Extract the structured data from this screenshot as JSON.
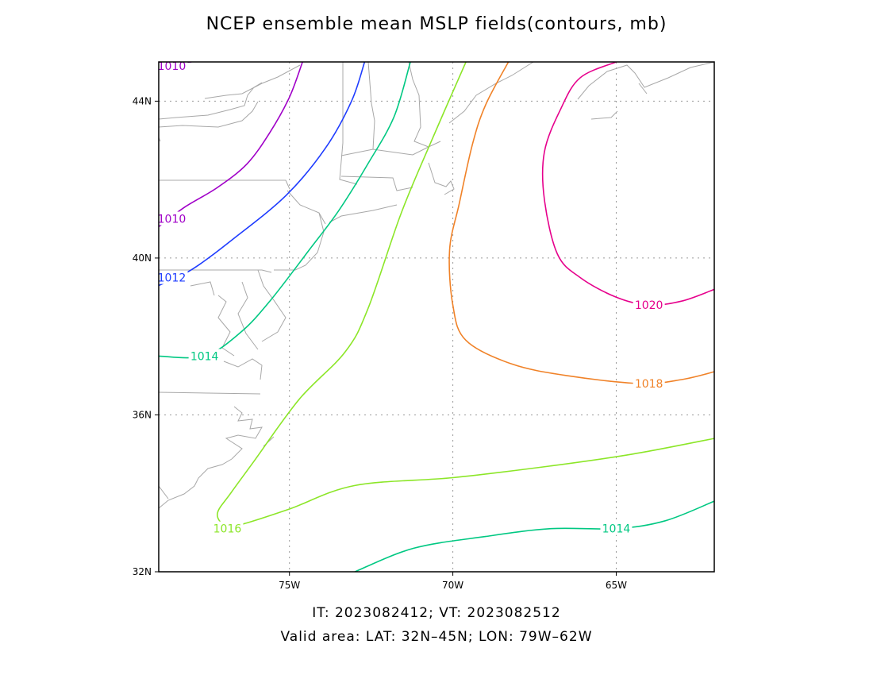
{
  "title": "NCEP ensemble mean MSLP fields(contours, mb)",
  "footer": {
    "times": "IT: 2023082412; VT: 2023082512",
    "area": "Valid area: LAT: 32N–45N; LON: 79W–62W"
  },
  "map": {
    "lat_range": [
      32,
      45
    ],
    "lon_range": [
      -79,
      -62
    ],
    "lat_ticks": [
      {
        "value": 32,
        "label": "32N"
      },
      {
        "value": 36,
        "label": "36N"
      },
      {
        "value": 40,
        "label": "40N"
      },
      {
        "value": 44,
        "label": "44N"
      }
    ],
    "lon_ticks": [
      {
        "value": -75,
        "label": "75W"
      },
      {
        "value": -70,
        "label": "70W"
      },
      {
        "value": -65,
        "label": "65W"
      }
    ],
    "grid": "dotted",
    "contours": [
      {
        "level": 1010,
        "color": "#a000c8",
        "points": [
          [
            -79,
            44.8
          ],
          [
            -78.6,
            44.95
          ],
          [
            -78.0,
            45.0
          ]
        ],
        "label_text": "1010",
        "label_at": [
          -78.6,
          44.9
        ]
      },
      {
        "level": 1010,
        "color": "#a000c8",
        "points": [
          [
            -79,
            40.8
          ],
          [
            -78.2,
            41.3
          ],
          [
            -77.2,
            41.8
          ],
          [
            -76.3,
            42.4
          ],
          [
            -75.6,
            43.2
          ],
          [
            -75.0,
            44.1
          ],
          [
            -74.6,
            45.0
          ]
        ],
        "label_text": "1010",
        "label_at": [
          -78.6,
          41.0
        ]
      },
      {
        "level": 1012,
        "color": "#1e3cff",
        "points": [
          [
            -79,
            39.3
          ],
          [
            -78.0,
            39.7
          ],
          [
            -76.7,
            40.5
          ],
          [
            -75.1,
            41.6
          ],
          [
            -73.9,
            42.8
          ],
          [
            -73.1,
            44.0
          ],
          [
            -72.7,
            45.0
          ]
        ],
        "label_text": "1012",
        "label_at": [
          -78.6,
          39.5
        ]
      },
      {
        "level": 1014,
        "color": "#00c882",
        "points": [
          [
            -79,
            37.5
          ],
          [
            -77.6,
            37.5
          ],
          [
            -76.5,
            38.1
          ],
          [
            -75.6,
            38.9
          ],
          [
            -74.4,
            40.2
          ],
          [
            -73.5,
            41.2
          ],
          [
            -72.6,
            42.4
          ],
          [
            -71.8,
            43.6
          ],
          [
            -71.3,
            45.0
          ]
        ],
        "label_text": "1014",
        "label_at": [
          -77.6,
          37.5
        ]
      },
      {
        "level": 1014,
        "color": "#00c882",
        "points": [
          [
            -73.0,
            32.0
          ],
          [
            -71.2,
            32.6
          ],
          [
            -69.0,
            32.9
          ],
          [
            -67.0,
            33.1
          ],
          [
            -65.0,
            33.1
          ],
          [
            -63.5,
            33.3
          ],
          [
            -62.0,
            33.8
          ]
        ],
        "label_text": "1014",
        "label_at": [
          -65.0,
          33.1
        ]
      },
      {
        "level": 1016,
        "color": "#8ce628",
        "points": [
          [
            -69.6,
            45.0
          ],
          [
            -70.7,
            42.9
          ],
          [
            -71.6,
            41.1
          ],
          [
            -72.6,
            38.7
          ],
          [
            -73.3,
            37.6
          ],
          [
            -74.7,
            36.4
          ],
          [
            -76.1,
            34.8
          ],
          [
            -76.8,
            34.0
          ],
          [
            -77.2,
            33.5
          ],
          [
            -77.0,
            33.2
          ],
          [
            -76.5,
            33.2
          ],
          [
            -75.0,
            33.6
          ],
          [
            -73.0,
            34.2
          ],
          [
            -70.0,
            34.4
          ],
          [
            -67.0,
            34.7
          ],
          [
            -64.5,
            35.0
          ],
          [
            -62.0,
            35.4
          ]
        ],
        "label_text": "1016",
        "label_at": [
          -76.9,
          33.1
        ]
      },
      {
        "level": 1018,
        "color": "#f08228",
        "points": [
          [
            -68.3,
            45.0
          ],
          [
            -69.0,
            43.9
          ],
          [
            -69.4,
            42.9
          ],
          [
            -69.8,
            41.4
          ],
          [
            -70.1,
            40.2
          ],
          [
            -70.0,
            38.8
          ],
          [
            -69.6,
            37.9
          ],
          [
            -68.2,
            37.3
          ],
          [
            -66.5,
            37.0
          ],
          [
            -64.3,
            36.8
          ],
          [
            -63.0,
            36.9
          ],
          [
            -62.0,
            37.1
          ]
        ],
        "label_text": "1018",
        "label_at": [
          -64.0,
          36.8
        ]
      },
      {
        "level": 1020,
        "color": "#e6008c",
        "points": [
          [
            -65.0,
            45.0
          ],
          [
            -66.1,
            44.6
          ],
          [
            -66.7,
            43.8
          ],
          [
            -67.2,
            42.7
          ],
          [
            -67.2,
            41.5
          ],
          [
            -66.8,
            40.1
          ],
          [
            -66.1,
            39.5
          ],
          [
            -65.0,
            39.0
          ],
          [
            -64.0,
            38.8
          ],
          [
            -63.0,
            38.9
          ],
          [
            -62.0,
            39.2
          ]
        ],
        "label_text": "1020",
        "label_at": [
          -64.0,
          38.8
        ]
      }
    ]
  }
}
